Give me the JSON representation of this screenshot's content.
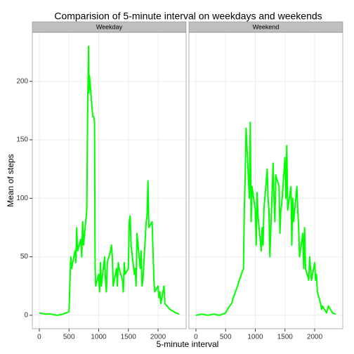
{
  "chart_data": {
    "type": "line",
    "title": "Comparision of 5-minute interval on weekdays and weekends",
    "xlabel": "5-minute interval",
    "ylabel": "Mean of steps",
    "color": "#00ff00",
    "grid": true,
    "xlim": [
      -117.75,
      2472.75
    ],
    "ylim": [
      -11.5,
      241.9
    ],
    "xticks": [
      0,
      500,
      1000,
      1500,
      2000
    ],
    "yticks": [
      0,
      50,
      100,
      150,
      200
    ],
    "panels": [
      {
        "name": "Weekday",
        "x": [
          0,
          100,
          200,
          300,
          400,
          500,
          530,
          545,
          600,
          615,
          630,
          645,
          700,
          715,
          730,
          745,
          800,
          815,
          830,
          835,
          845,
          900,
          915,
          930,
          940,
          950,
          1000,
          1015,
          1030,
          1045,
          1100,
          1115,
          1130,
          1145,
          1200,
          1215,
          1230,
          1245,
          1300,
          1315,
          1330,
          1345,
          1400,
          1415,
          1430,
          1445,
          1500,
          1515,
          1530,
          1545,
          1600,
          1615,
          1630,
          1645,
          1700,
          1715,
          1730,
          1745,
          1800,
          1815,
          1830,
          1845,
          1900,
          1915,
          1930,
          1945,
          2000,
          2015,
          2030,
          2045,
          2100,
          2115,
          2200,
          2300,
          2355
        ],
        "values": [
          2,
          1,
          1,
          0,
          1,
          3,
          50,
          40,
          55,
          45,
          75,
          55,
          65,
          50,
          80,
          60,
          90,
          180,
          230,
          190,
          205,
          170,
          170,
          165,
          40,
          25,
          35,
          20,
          45,
          25,
          50,
          30,
          20,
          45,
          55,
          60,
          50,
          25,
          40,
          25,
          45,
          40,
          30,
          20,
          45,
          35,
          40,
          80,
          85,
          60,
          35,
          40,
          25,
          70,
          40,
          55,
          25,
          30,
          80,
          85,
          115,
          75,
          80,
          55,
          30,
          20,
          25,
          15,
          20,
          10,
          25,
          10,
          5,
          2,
          1
        ]
      },
      {
        "name": "Weekend",
        "x": [
          0,
          100,
          200,
          300,
          400,
          500,
          530,
          600,
          630,
          700,
          730,
          800,
          815,
          830,
          845,
          900,
          915,
          930,
          945,
          1000,
          1015,
          1030,
          1045,
          1100,
          1115,
          1130,
          1145,
          1200,
          1215,
          1230,
          1245,
          1300,
          1315,
          1330,
          1345,
          1400,
          1415,
          1430,
          1445,
          1500,
          1515,
          1530,
          1545,
          1600,
          1615,
          1630,
          1645,
          1700,
          1715,
          1730,
          1745,
          1800,
          1815,
          1830,
          1845,
          1900,
          1915,
          1930,
          1945,
          2000,
          2015,
          2030,
          2045,
          2100,
          2115,
          2130,
          2200,
          2230,
          2300,
          2355
        ],
        "values": [
          0,
          1,
          0,
          1,
          0,
          2,
          5,
          10,
          15,
          25,
          30,
          40,
          90,
          120,
          160,
          100,
          165,
          80,
          110,
          90,
          60,
          105,
          85,
          55,
          75,
          60,
          90,
          125,
          100,
          90,
          50,
          130,
          100,
          80,
          120,
          110,
          70,
          90,
          95,
          135,
          100,
          145,
          90,
          110,
          60,
          100,
          80,
          110,
          90,
          75,
          50,
          70,
          40,
          75,
          40,
          30,
          50,
          40,
          30,
          45,
          30,
          35,
          20,
          10,
          5,
          8,
          2,
          8,
          2,
          1
        ]
      }
    ]
  }
}
